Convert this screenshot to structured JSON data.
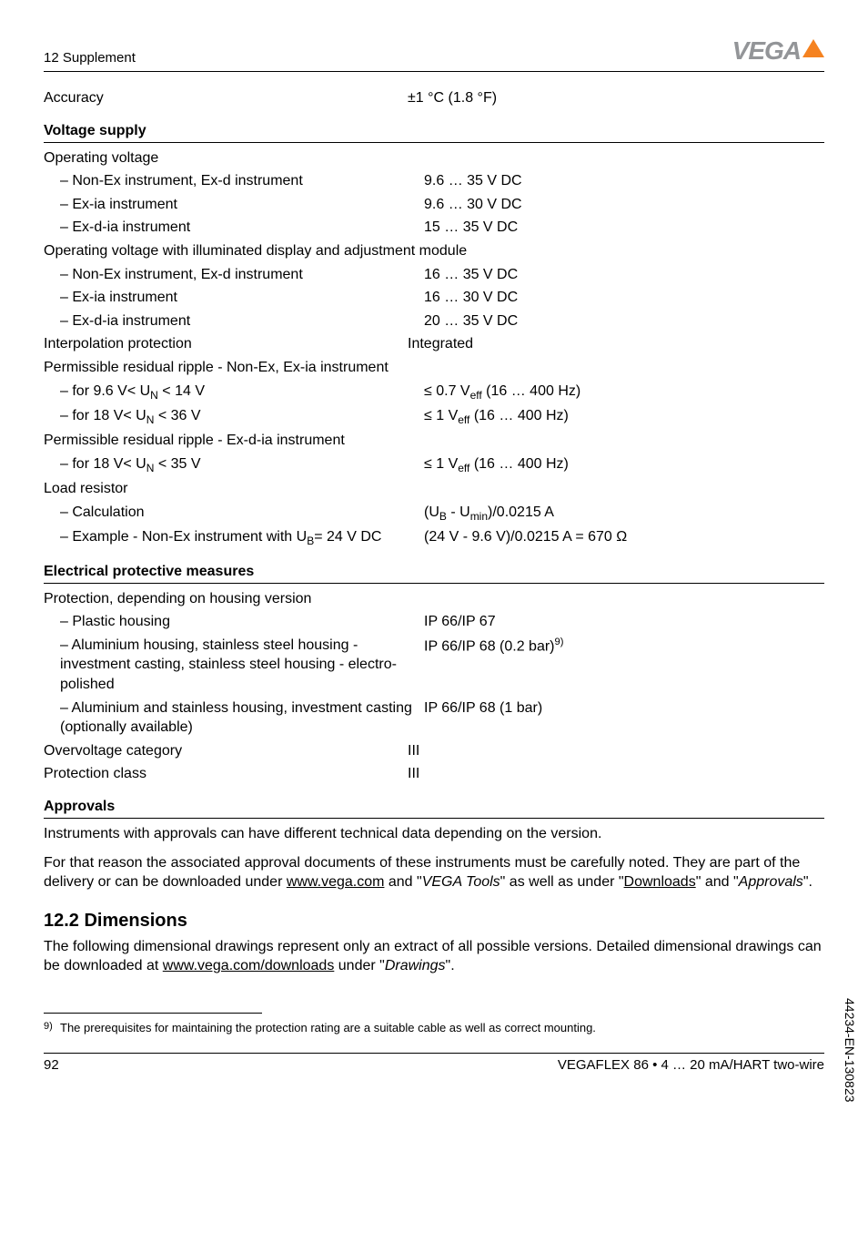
{
  "header": {
    "section": "12 Supplement",
    "logo_text": "VEGA"
  },
  "accuracy_row": {
    "label": "Accuracy",
    "value": "±1 °C (1.8 °F)"
  },
  "voltage_supply": {
    "heading": "Voltage supply",
    "operating_voltage_label": "Operating voltage",
    "rows1": [
      {
        "label": "Non-Ex instrument, Ex-d instrument",
        "value": "9.6 … 35 V DC"
      },
      {
        "label": "Ex-ia instrument",
        "value": "9.6 … 30 V DC"
      },
      {
        "label": "Ex-d-ia instrument",
        "value": "15 … 35 V DC"
      }
    ],
    "illuminated_label": "Operating voltage with illuminated display and adjustment module",
    "rows2": [
      {
        "label": "Non-Ex instrument, Ex-d instrument",
        "value": "16 … 35 V DC"
      },
      {
        "label": "Ex-ia instrument",
        "value": "16 … 30 V DC"
      },
      {
        "label": "Ex-d-ia instrument",
        "value": "20 … 35 V DC"
      }
    ],
    "interpolation": {
      "label": "Interpolation protection",
      "value": "Integrated"
    },
    "ripple_nonex_label": "Permissible residual ripple - Non-Ex, Ex-ia instrument",
    "ripple_exdia_label": "Permissible residual ripple - Ex-d-ia instrument",
    "load_resistor_label": "Load resistor"
  },
  "electrical": {
    "heading": "Electrical protective measures",
    "prot_version_label": "Protection, depending on housing version",
    "rows": [
      {
        "label": "Plastic housing",
        "value": "IP 66/IP 67"
      }
    ],
    "overvoltage": {
      "label": "Overvoltage category",
      "value": "III"
    },
    "protclass": {
      "label": "Protection class",
      "value": "III"
    }
  },
  "approvals": {
    "heading": "Approvals",
    "p1": "Instruments with approvals can have different technical data depending on the version.",
    "p2a": "For that reason the associated approval documents of these instruments must be carefully noted. They are part of the delivery or can be downloaded under ",
    "p2_link1": "www.vega.com",
    "p2b": " and \"",
    "p2_italic1": "VEGA Tools",
    "p2c": "\" as well as under \"",
    "p2_link2": "Downloads",
    "p2d": "\" and \"",
    "p2_italic2": "Approvals",
    "p2e": "\"."
  },
  "dimensions": {
    "heading": "12.2   Dimensions",
    "p1a": "The following dimensional drawings represent only an extract of all possible versions. Detailed dimensional drawings can be downloaded at ",
    "p1_link": "www.vega.com/downloads",
    "p1b": " under \"",
    "p1_italic": "Drawings",
    "p1c": "\"."
  },
  "footnote": {
    "num": "9)",
    "text": "The prerequisites for maintaining the protection rating are a suitable cable as well as correct mounting."
  },
  "footer": {
    "page": "92",
    "title": "VEGAFLEX 86 • 4 … 20 mA/HART two-wire"
  },
  "side_code": "44234-EN-130823"
}
